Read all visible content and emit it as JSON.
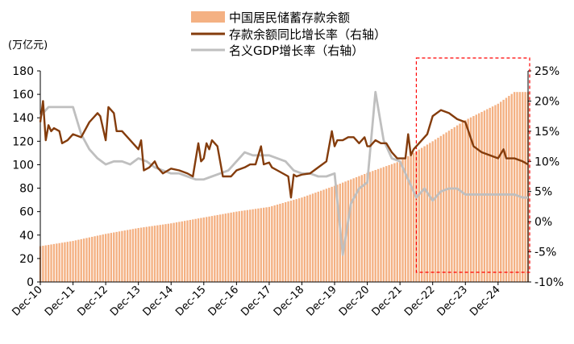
{
  "chart_data": {
    "type": "bar+line",
    "title": "",
    "left_axis": {
      "label": "(万亿元)",
      "min": 0,
      "max": 180,
      "ticks": [
        0,
        20,
        40,
        60,
        80,
        100,
        120,
        140,
        160,
        180
      ]
    },
    "right_axis": {
      "min": -10,
      "max": 25,
      "ticks": [
        "-10%",
        "-5%",
        "0%",
        "5%",
        "10%",
        "15%",
        "20%",
        "25%"
      ],
      "tick_values": [
        -10,
        -5,
        0,
        5,
        10,
        15,
        20,
        25
      ]
    },
    "x_tick_labels": [
      "Dec-10",
      "Dec-11",
      "Dec-12",
      "Dec-13",
      "Dec-14",
      "Dec-15",
      "Dec-16",
      "Dec-17",
      "Dec-18",
      "Dec-19",
      "Dec-20",
      "Dec-21",
      "Dec-22",
      "Dec-23",
      "Dec-24"
    ],
    "legend": [
      {
        "name": "中国居民储蓄存款余额",
        "kind": "bar",
        "color": "#F4B183"
      },
      {
        "name": "存款余额同比增长率（右轴）",
        "kind": "line",
        "color": "#843C0C"
      },
      {
        "name": "名义GDP增长率（右轴）",
        "kind": "line",
        "color": "#BFBFBF"
      }
    ],
    "highlight_box": {
      "from": "Dec-21 (+6 months)",
      "to": "end",
      "color": "#FF0000",
      "style": "dashed"
    },
    "bar_keyframes": [
      [
        "2010-12",
        30.5
      ],
      [
        "2011-12",
        35.0
      ],
      [
        "2012-12",
        41.0
      ],
      [
        "2013-12",
        46.0
      ],
      [
        "2014-12",
        50.0
      ],
      [
        "2015-12",
        55.0
      ],
      [
        "2016-12",
        60.0
      ],
      [
        "2017-12",
        64.0
      ],
      [
        "2018-12",
        72.0
      ],
      [
        "2019-12",
        82.0
      ],
      [
        "2020-12",
        93.0
      ],
      [
        "2021-12",
        103.0
      ],
      [
        "2022-12",
        120.0
      ],
      [
        "2023-12",
        138.0
      ],
      [
        "2024-12",
        152.0
      ],
      [
        "2025-06",
        162.0
      ]
    ],
    "series": [
      {
        "name": "存款余额同比增长率（右轴）",
        "points": [
          [
            "2010-12",
            16.5
          ],
          [
            "2011-01",
            20.0
          ],
          [
            "2011-02",
            13.5
          ],
          [
            "2011-03",
            16.0
          ],
          [
            "2011-04",
            15.0
          ],
          [
            "2011-05",
            15.5
          ],
          [
            "2011-07",
            15.0
          ],
          [
            "2011-08",
            13.0
          ],
          [
            "2011-10",
            13.5
          ],
          [
            "2011-12",
            14.5
          ],
          [
            "2012-03",
            14.0
          ],
          [
            "2012-06",
            16.5
          ],
          [
            "2012-09",
            18.0
          ],
          [
            "2012-10",
            17.5
          ],
          [
            "2012-12",
            13.5
          ],
          [
            "2013-01",
            19.0
          ],
          [
            "2013-03",
            18.0
          ],
          [
            "2013-04",
            15.0
          ],
          [
            "2013-06",
            15.0
          ],
          [
            "2013-08",
            14.0
          ],
          [
            "2013-10",
            13.0
          ],
          [
            "2013-12",
            12.0
          ],
          [
            "2014-01",
            13.5
          ],
          [
            "2014-02",
            8.5
          ],
          [
            "2014-04",
            9.0
          ],
          [
            "2014-06",
            10.0
          ],
          [
            "2014-07",
            9.0
          ],
          [
            "2014-09",
            8.0
          ],
          [
            "2014-12",
            8.8
          ],
          [
            "2015-03",
            8.5
          ],
          [
            "2015-06",
            8.0
          ],
          [
            "2015-08",
            7.5
          ],
          [
            "2015-10",
            13.0
          ],
          [
            "2015-11",
            10.0
          ],
          [
            "2015-12",
            10.5
          ],
          [
            "2016-01",
            13.0
          ],
          [
            "2016-02",
            12.0
          ],
          [
            "2016-03",
            13.5
          ],
          [
            "2016-05",
            12.5
          ],
          [
            "2016-07",
            7.5
          ],
          [
            "2016-10",
            7.5
          ],
          [
            "2016-12",
            8.5
          ],
          [
            "2017-03",
            9.0
          ],
          [
            "2017-05",
            9.5
          ],
          [
            "2017-07",
            9.5
          ],
          [
            "2017-09",
            12.5
          ],
          [
            "2017-10",
            9.5
          ],
          [
            "2017-12",
            9.8
          ],
          [
            "2018-01",
            9.0
          ],
          [
            "2018-03",
            8.5
          ],
          [
            "2018-05",
            8.0
          ],
          [
            "2018-07",
            7.5
          ],
          [
            "2018-08",
            4.0
          ],
          [
            "2018-09",
            7.8
          ],
          [
            "2018-10",
            7.5
          ],
          [
            "2018-12",
            7.8
          ],
          [
            "2019-03",
            8.0
          ],
          [
            "2019-06",
            9.0
          ],
          [
            "2019-09",
            10.0
          ],
          [
            "2019-11",
            15.0
          ],
          [
            "2019-12",
            12.5
          ],
          [
            "2020-01",
            13.5
          ],
          [
            "2020-03",
            13.5
          ],
          [
            "2020-05",
            14.0
          ],
          [
            "2020-07",
            14.0
          ],
          [
            "2020-09",
            13.0
          ],
          [
            "2020-11",
            14.0
          ],
          [
            "2020-12",
            12.5
          ],
          [
            "2021-01",
            12.5
          ],
          [
            "2021-03",
            13.5
          ],
          [
            "2021-05",
            13.0
          ],
          [
            "2021-07",
            13.0
          ],
          [
            "2021-09",
            11.5
          ],
          [
            "2021-11",
            10.5
          ],
          [
            "2021-12",
            10.5
          ],
          [
            "2022-02",
            10.5
          ],
          [
            "2022-03",
            14.5
          ],
          [
            "2022-04",
            11.0
          ],
          [
            "2022-05",
            12.0
          ],
          [
            "2022-06",
            12.5
          ],
          [
            "2022-08",
            13.5
          ],
          [
            "2022-10",
            14.5
          ],
          [
            "2022-12",
            17.5
          ],
          [
            "2023-03",
            18.5
          ],
          [
            "2023-06",
            18.0
          ],
          [
            "2023-09",
            17.0
          ],
          [
            "2023-12",
            16.5
          ],
          [
            "2024-03",
            12.5
          ],
          [
            "2024-06",
            11.5
          ],
          [
            "2024-09",
            11.0
          ],
          [
            "2024-12",
            10.5
          ],
          [
            "2025-02",
            12.0
          ],
          [
            "2025-03",
            10.5
          ],
          [
            "2025-06",
            10.5
          ],
          [
            "2025-09",
            10.0
          ],
          [
            "2025-11",
            9.5
          ]
        ]
      },
      {
        "name": "名义GDP增长率（右轴）",
        "points": [
          [
            "2010-12",
            17.5
          ],
          [
            "2011-03",
            19.0
          ],
          [
            "2011-06",
            19.0
          ],
          [
            "2011-09",
            19.0
          ],
          [
            "2011-12",
            19.0
          ],
          [
            "2012-03",
            14.5
          ],
          [
            "2012-06",
            12.0
          ],
          [
            "2012-09",
            10.5
          ],
          [
            "2012-12",
            9.5
          ],
          [
            "2013-03",
            10.0
          ],
          [
            "2013-06",
            10.0
          ],
          [
            "2013-09",
            9.5
          ],
          [
            "2013-12",
            10.5
          ],
          [
            "2014-03",
            10.0
          ],
          [
            "2014-06",
            9.0
          ],
          [
            "2014-09",
            8.5
          ],
          [
            "2014-12",
            8.0
          ],
          [
            "2015-03",
            8.0
          ],
          [
            "2015-06",
            7.5
          ],
          [
            "2015-09",
            7.0
          ],
          [
            "2015-12",
            7.0
          ],
          [
            "2016-03",
            7.5
          ],
          [
            "2016-06",
            8.0
          ],
          [
            "2016-09",
            8.5
          ],
          [
            "2016-12",
            10.0
          ],
          [
            "2017-03",
            11.5
          ],
          [
            "2017-06",
            11.0
          ],
          [
            "2017-09",
            11.0
          ],
          [
            "2017-12",
            11.0
          ],
          [
            "2018-03",
            10.5
          ],
          [
            "2018-06",
            10.0
          ],
          [
            "2018-09",
            8.5
          ],
          [
            "2018-12",
            8.0
          ],
          [
            "2019-03",
            8.0
          ],
          [
            "2019-06",
            7.5
          ],
          [
            "2019-09",
            7.5
          ],
          [
            "2019-12",
            8.0
          ],
          [
            "2020-03",
            -5.5
          ],
          [
            "2020-06",
            3.0
          ],
          [
            "2020-09",
            5.5
          ],
          [
            "2020-12",
            6.5
          ],
          [
            "2021-03",
            21.5
          ],
          [
            "2021-06",
            13.5
          ],
          [
            "2021-09",
            10.5
          ],
          [
            "2021-12",
            10.0
          ],
          [
            "2022-03",
            7.0
          ],
          [
            "2022-06",
            4.0
          ],
          [
            "2022-09",
            5.5
          ],
          [
            "2022-12",
            3.5
          ],
          [
            "2023-03",
            5.0
          ],
          [
            "2023-06",
            5.5
          ],
          [
            "2023-09",
            5.5
          ],
          [
            "2023-12",
            4.5
          ],
          [
            "2024-03",
            4.5
          ],
          [
            "2024-06",
            4.5
          ],
          [
            "2024-09",
            4.5
          ],
          [
            "2024-12",
            4.5
          ],
          [
            "2025-03",
            4.5
          ],
          [
            "2025-06",
            4.5
          ],
          [
            "2025-09",
            4.0
          ],
          [
            "2025-11",
            4.0
          ]
        ]
      }
    ]
  }
}
